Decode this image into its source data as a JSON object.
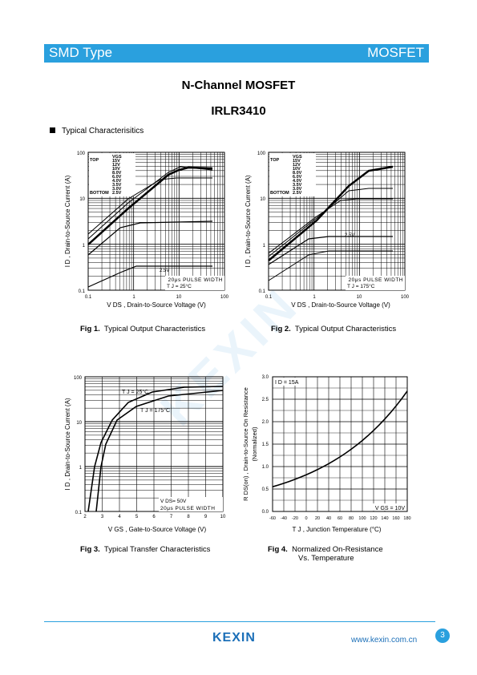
{
  "header": {
    "left": "SMD Type",
    "right": "MOSFET"
  },
  "title": "N-Channel MOSFET",
  "part": "IRLR3410",
  "section": "Typical  Characterisitics",
  "fig1": {
    "caption_num": "Fig 1.",
    "caption": "Typical Output Characteristics",
    "ylabel": "I D , Drain-to-Source Current (A)",
    "xlabel": "V DS , Drain-to-Source Voltage (V)",
    "note1": "20μs PULSE WIDTH",
    "note2": "T J = 25°C",
    "min_label": "2.5V",
    "legend_top": "TOP",
    "legend_bottom": "BOTTOM",
    "legend": [
      "VGS",
      "15V",
      "12V",
      "10V",
      "8.0V",
      "6.0V",
      "4.0V",
      "3.5V",
      "3.0V",
      "2.5V"
    ],
    "yticks": [
      "100",
      "10",
      "1",
      "0.1"
    ],
    "xticks": [
      "0.1",
      "1",
      "10",
      "100"
    ]
  },
  "fig2": {
    "caption_num": "Fig 2.",
    "caption": "Typical Output Characteristics",
    "ylabel": "I D , Drain-to-Source Current (A)",
    "xlabel": "V DS , Drain-to-Source Voltage (V)",
    "note1": "20μs PULSE WIDTH",
    "note2": "T J = 175°C",
    "min_label": "2.5V",
    "legend_top": "TOP",
    "legend_bottom": "BOTTOM",
    "legend": [
      "VGS",
      "15V",
      "12V",
      "10V",
      "8.0V",
      "6.0V",
      "4.0V",
      "3.5V",
      "3.0V",
      "2.5V"
    ],
    "yticks": [
      "100",
      "10",
      "1",
      "0.1"
    ],
    "xticks": [
      "0.1",
      "1",
      "10",
      "100"
    ]
  },
  "fig3": {
    "caption_num": "Fig 3.",
    "caption": "Typical Transfer Characteristics",
    "ylabel": "I D , Drain-to-Source Current (A)",
    "xlabel": "V GS , Gate-to-Source Voltage (V)",
    "note1": "V DS= 50V",
    "note2": "20μs PULSE WIDTH",
    "t25": "T J = 25°C",
    "t175": "T J = 175°C",
    "yticks": [
      "100",
      "10",
      "1",
      "0.1"
    ],
    "xticks": [
      "2",
      "3",
      "4",
      "5",
      "6",
      "7",
      "8",
      "9",
      "10"
    ]
  },
  "fig4": {
    "caption_num": "Fig 4.",
    "caption": "Normalized On-Resistance",
    "caption2": "Vs. Temperature",
    "ylabel": "R DS(on) , Drain-to-Source On Resistance",
    "ylabel2": "(Normalized)",
    "xlabel": "T J , Junction Temperature (°C)",
    "note_id": "I D = 15A",
    "note_vgs": "V GS = 10V",
    "yticks": [
      "3.0",
      "2.5",
      "2.0",
      "1.5",
      "1.0",
      "0.5",
      "0.0"
    ],
    "xticks": [
      "-60",
      "-40",
      "-20",
      "0",
      "20",
      "40",
      "60",
      "80",
      "100",
      "120",
      "140",
      "160",
      "180"
    ]
  },
  "footer": {
    "logo": "KEXIN",
    "url": "www.kexin.com.cn",
    "page": "3"
  },
  "colors": {
    "accent": "#2aa0de",
    "logo": "#1b6fb8"
  }
}
